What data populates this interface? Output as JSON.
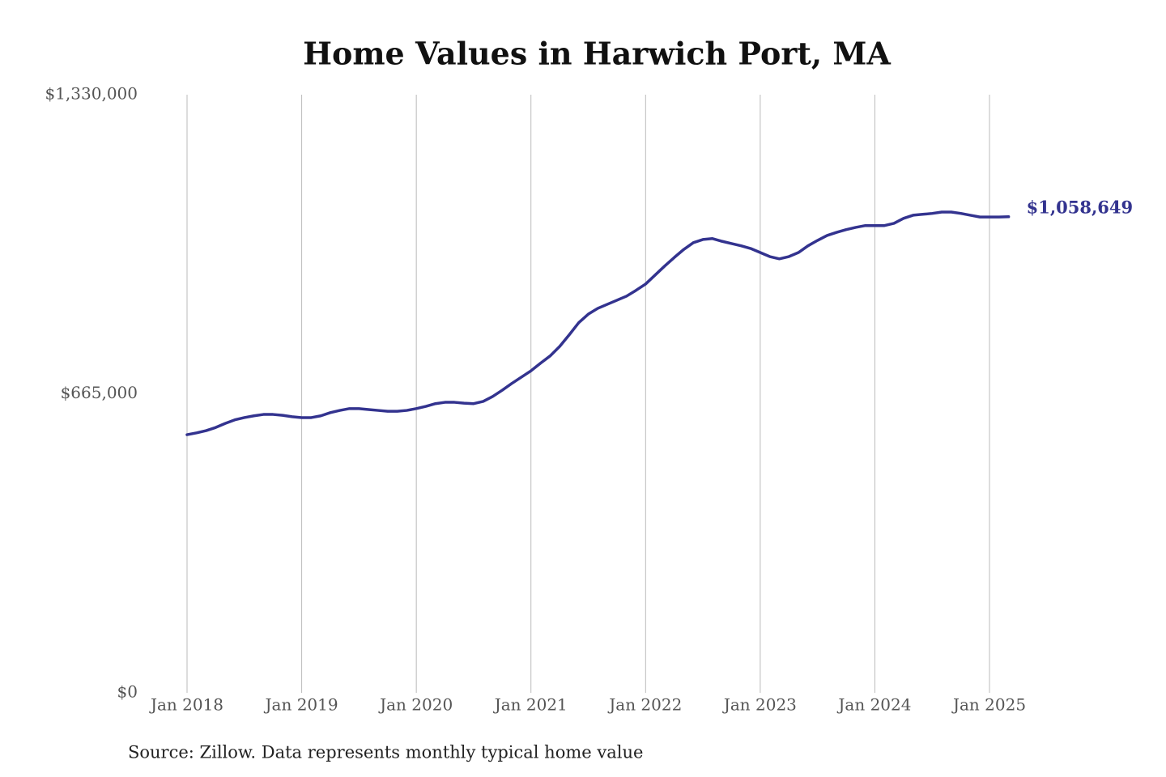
{
  "chart_data": {
    "type": "line",
    "title": "Home Values in Harwich Port, MA",
    "source": "Source: Zillow. Data represents monthly typical home value",
    "x": [
      "2018-01",
      "2018-02",
      "2018-03",
      "2018-04",
      "2018-05",
      "2018-06",
      "2018-07",
      "2018-08",
      "2018-09",
      "2018-10",
      "2018-11",
      "2018-12",
      "2019-01",
      "2019-02",
      "2019-03",
      "2019-04",
      "2019-05",
      "2019-06",
      "2019-07",
      "2019-08",
      "2019-09",
      "2019-10",
      "2019-11",
      "2019-12",
      "2020-01",
      "2020-02",
      "2020-03",
      "2020-04",
      "2020-05",
      "2020-06",
      "2020-07",
      "2020-08",
      "2020-09",
      "2020-10",
      "2020-11",
      "2020-12",
      "2021-01",
      "2021-02",
      "2021-03",
      "2021-04",
      "2021-05",
      "2021-06",
      "2021-07",
      "2021-08",
      "2021-09",
      "2021-10",
      "2021-11",
      "2021-12",
      "2022-01",
      "2022-02",
      "2022-03",
      "2022-04",
      "2022-05",
      "2022-06",
      "2022-07",
      "2022-08",
      "2022-09",
      "2022-10",
      "2022-11",
      "2022-12",
      "2023-01",
      "2023-02",
      "2023-03",
      "2023-04",
      "2023-05",
      "2023-06",
      "2023-07",
      "2023-08",
      "2023-09",
      "2023-10",
      "2023-11",
      "2023-12",
      "2024-01",
      "2024-02",
      "2024-03",
      "2024-04",
      "2024-05",
      "2024-06",
      "2024-07",
      "2024-08",
      "2024-09",
      "2024-10",
      "2024-11",
      "2024-12",
      "2025-01",
      "2025-02",
      "2025-03"
    ],
    "series": [
      {
        "name": "Typical home value",
        "color": "#33338f",
        "values": [
          574000,
          578000,
          583000,
          590000,
          599000,
          607000,
          612000,
          616000,
          619000,
          619000,
          617000,
          614000,
          612000,
          612000,
          616000,
          623000,
          628000,
          632000,
          632000,
          630000,
          628000,
          626000,
          626000,
          628000,
          632000,
          637000,
          643000,
          646000,
          646000,
          644000,
          643000,
          648000,
          659000,
          673000,
          688000,
          702000,
          716000,
          733000,
          749000,
          770000,
          796000,
          823000,
          842000,
          855000,
          864000,
          873000,
          882000,
          895000,
          909000,
          929000,
          949000,
          968000,
          986000,
          1001000,
          1008000,
          1010000,
          1004000,
          999000,
          994000,
          988000,
          979000,
          970000,
          965000,
          970000,
          979000,
          994000,
          1006000,
          1017000,
          1024000,
          1030000,
          1035000,
          1039000,
          1039000,
          1039000,
          1044000,
          1055000,
          1062000,
          1064000,
          1066000,
          1069000,
          1069000,
          1066000,
          1062000,
          1058000,
          1058000,
          1058000,
          1058649
        ],
        "value_labels": [
          null,
          null,
          null,
          null,
          null,
          null,
          null,
          null,
          null,
          null,
          null,
          null,
          null,
          null,
          null,
          null,
          null,
          null,
          null,
          null,
          null,
          null,
          null,
          null,
          null,
          null,
          null,
          null,
          null,
          null,
          null,
          null,
          null,
          null,
          null,
          null,
          null,
          null,
          null,
          null,
          null,
          null,
          null,
          null,
          null,
          null,
          null,
          null,
          null,
          null,
          null,
          null,
          null,
          null,
          null,
          null,
          null,
          null,
          null,
          null,
          null,
          null,
          null,
          null,
          null,
          null,
          null,
          null,
          null,
          null,
          null,
          null,
          null,
          null,
          null,
          null,
          null,
          null,
          null,
          null,
          null,
          null,
          null,
          null,
          null,
          null,
          "$1,058,649"
        ]
      }
    ],
    "ylim": [
      0,
      1330000
    ],
    "yticks": [
      {
        "value": 0,
        "label": "$0"
      },
      {
        "value": 665000,
        "label": "$665,000"
      },
      {
        "value": 1330000,
        "label": "$1,330,000"
      }
    ],
    "xticks": [
      {
        "value": "2018-01",
        "label": "Jan 2018"
      },
      {
        "value": "2019-01",
        "label": "Jan 2019"
      },
      {
        "value": "2020-01",
        "label": "Jan 2020"
      },
      {
        "value": "2021-01",
        "label": "Jan 2021"
      },
      {
        "value": "2022-01",
        "label": "Jan 2022"
      },
      {
        "value": "2023-01",
        "label": "Jan 2023"
      },
      {
        "value": "2024-01",
        "label": "Jan 2024"
      },
      {
        "value": "2025-01",
        "label": "Jan 2025"
      }
    ],
    "grid": "x"
  }
}
